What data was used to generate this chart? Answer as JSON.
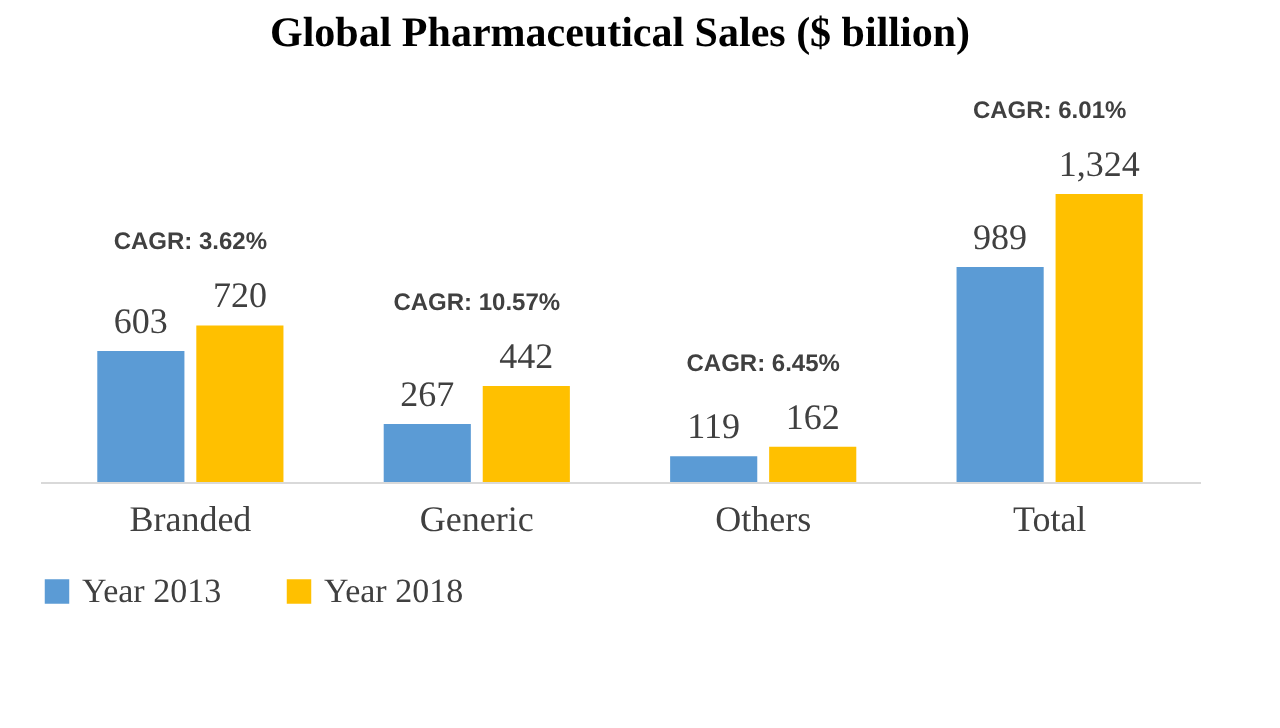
{
  "chart_data": {
    "type": "bar",
    "title": "Global Pharmaceutical Sales ($ billion)",
    "categories": [
      "Branded",
      "Generic",
      "Others",
      "Total"
    ],
    "series": [
      {
        "name": "Year 2013",
        "color": "#5b9bd5",
        "values": [
          603,
          267,
          119,
          989
        ],
        "value_labels": [
          "603",
          "267",
          "119",
          "989"
        ]
      },
      {
        "name": "Year 2018",
        "color": "#ffc000",
        "values": [
          720,
          442,
          162,
          1324
        ],
        "value_labels": [
          "720",
          "442",
          "162",
          "1,324"
        ]
      }
    ],
    "legend": "bottom",
    "annotations": [
      "CAGR: 3.62%",
      "CAGR: 10.57%",
      "CAGR: 6.45%",
      "CAGR: 6.01%"
    ]
  }
}
